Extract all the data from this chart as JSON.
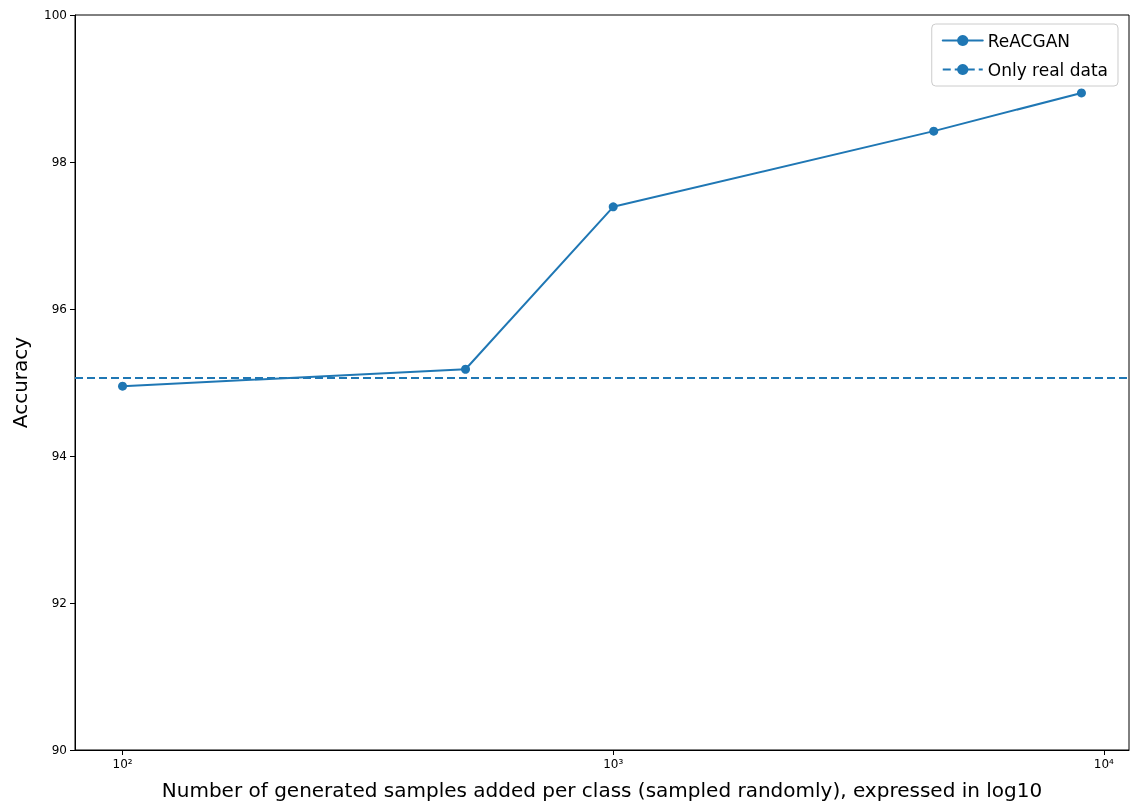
{
  "chart_data": {
    "type": "line",
    "xlabel": "Number of generated samples added per class (sampled randomly), expressed in log10",
    "ylabel": "Accuracy",
    "x": [
      100,
      500,
      1000,
      4500,
      9000
    ],
    "series": [
      {
        "name": "ReACGAN",
        "color": "#1f77b4",
        "values": [
          94.95,
          95.18,
          97.39,
          98.42,
          98.94
        ]
      }
    ],
    "ref_lines": [
      {
        "axis": "y",
        "value": 95.06,
        "label": "Only real data",
        "color": "#1f77b4",
        "line_style": "dashed"
      }
    ],
    "log": "x",
    "xlim": [
      80,
      11250
    ],
    "xticks": [
      {
        "value": 100,
        "label": "10²"
      },
      {
        "value": 1000,
        "label": "10³"
      },
      {
        "value": 10000,
        "label": "10⁴"
      }
    ],
    "ylim": [
      90,
      100
    ],
    "yticks": [
      90,
      92,
      94,
      96,
      98,
      100
    ],
    "marker": "circle",
    "line_style": "solid",
    "grid": false,
    "legend": "top right"
  }
}
